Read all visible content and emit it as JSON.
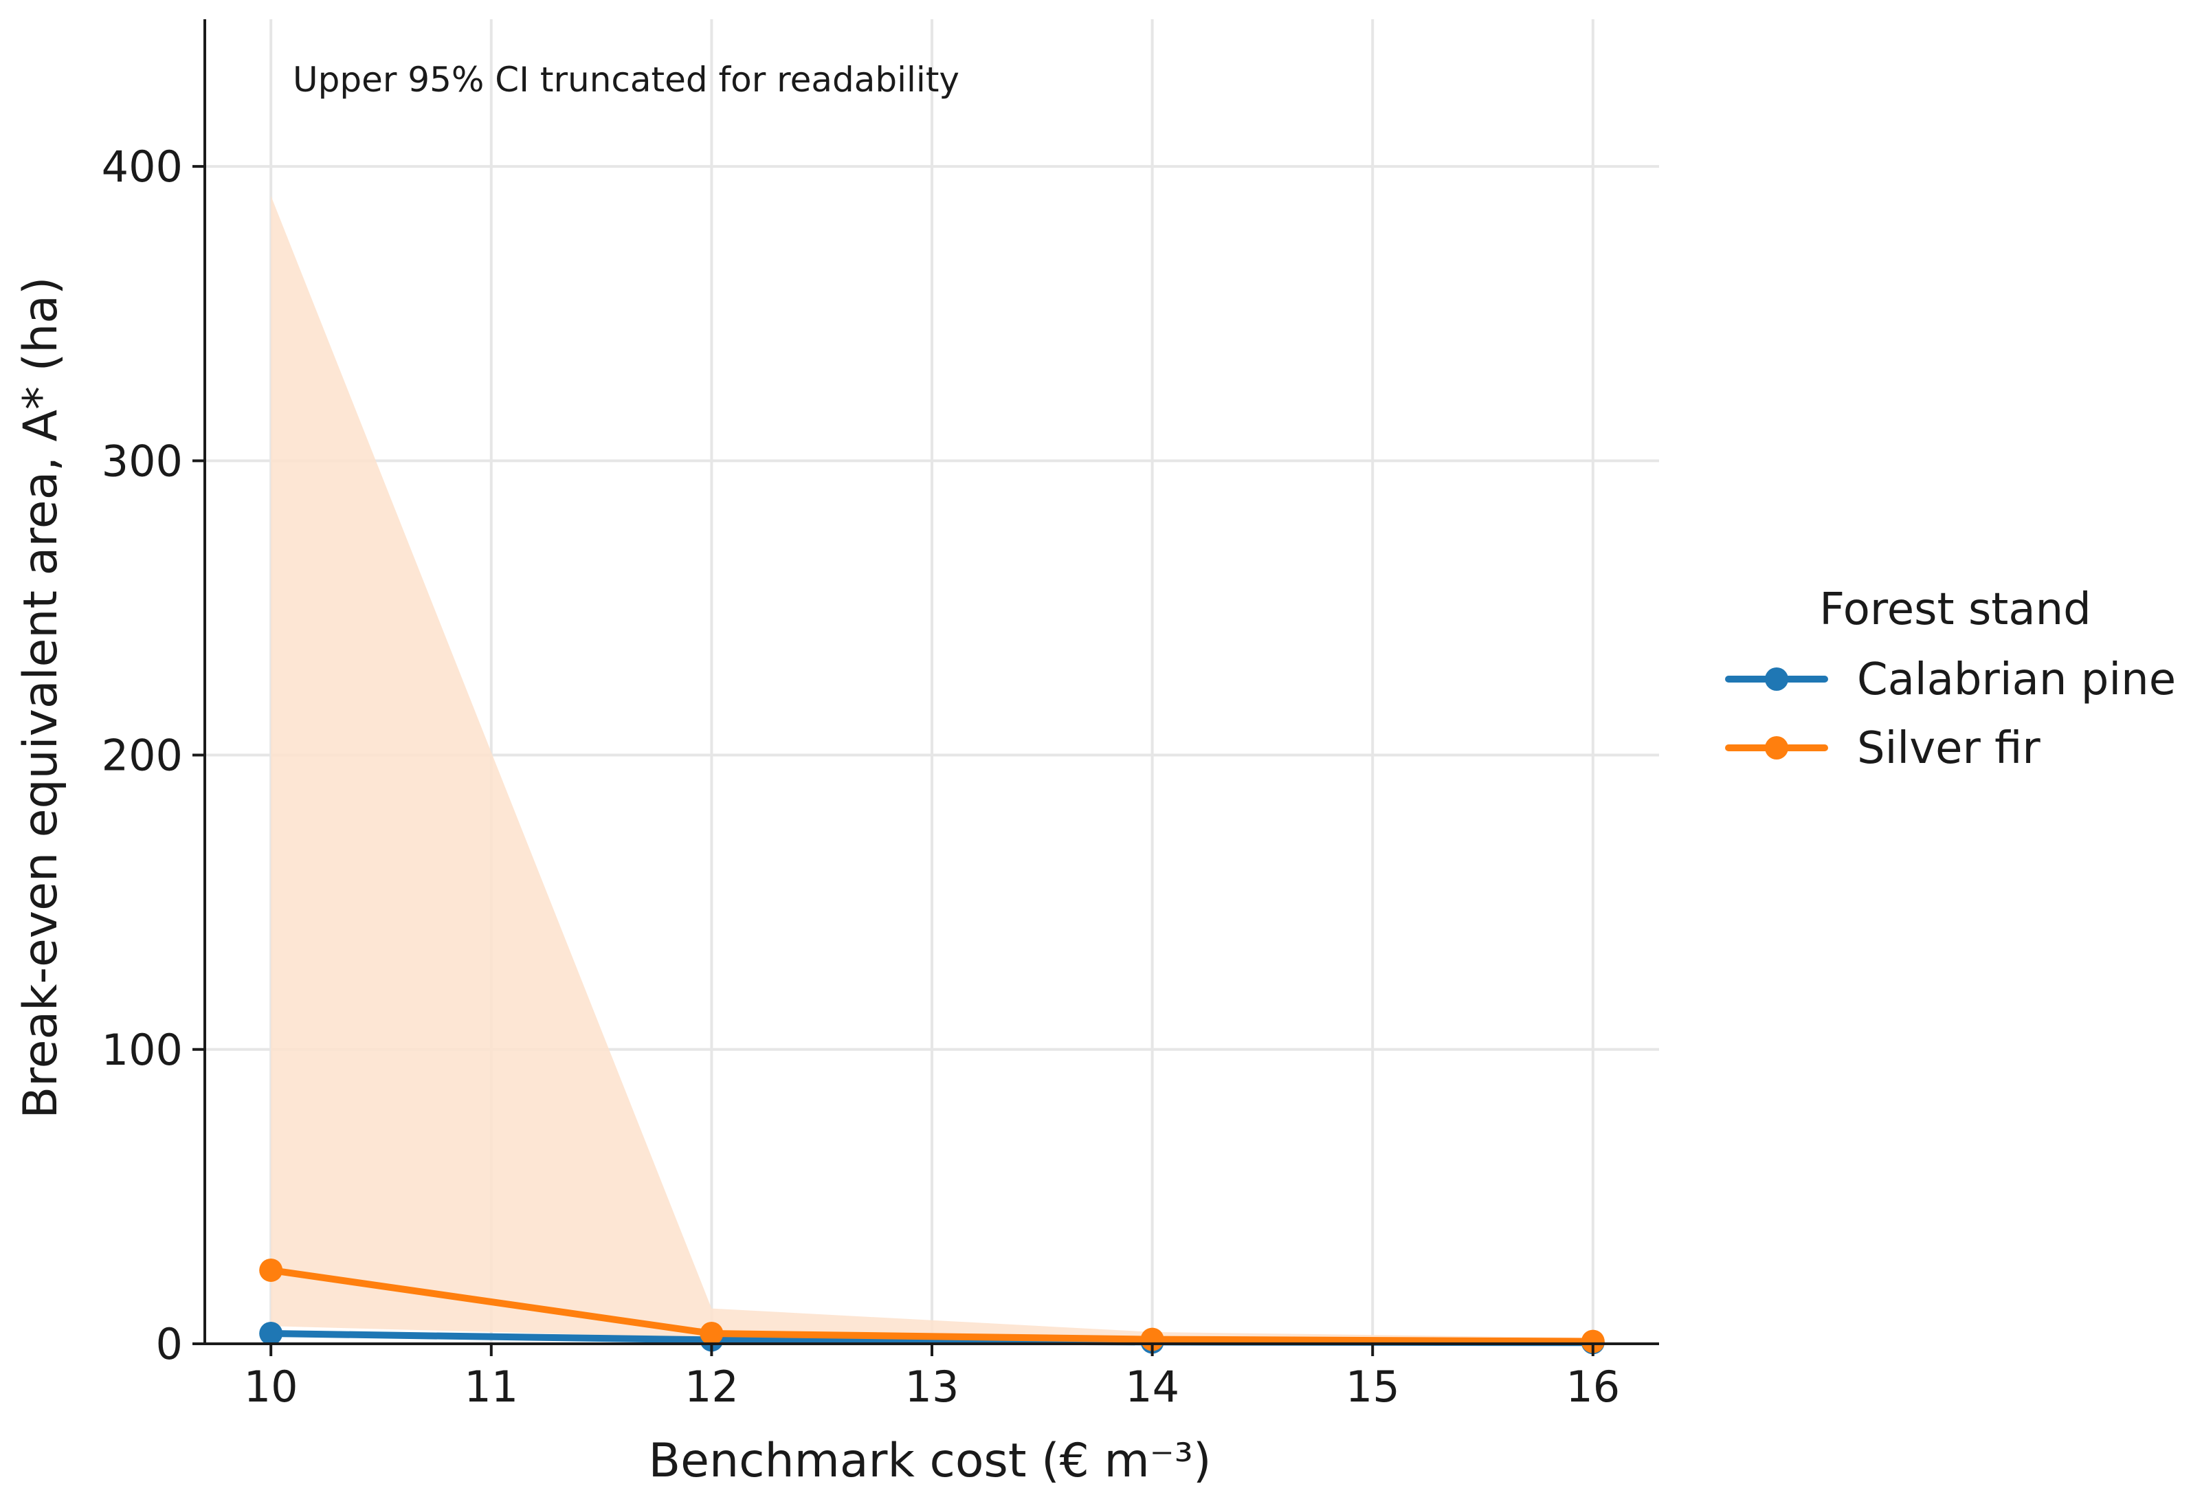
{
  "chart_data": {
    "type": "line",
    "title": "",
    "xlabel": "Benchmark cost (€ m⁻³)",
    "ylabel": "Break-even equivalent area, A* (ha)",
    "xlim": [
      9.7,
      16.3
    ],
    "ylim": [
      0,
      450
    ],
    "xticks": [
      10,
      11,
      12,
      13,
      14,
      15,
      16
    ],
    "yticks": [
      0,
      100,
      200,
      300,
      400
    ],
    "grid": true,
    "annotation": "Upper 95% CI truncated for readability",
    "legend": {
      "title": "Forest stand",
      "placement": "right-outside"
    },
    "series": [
      {
        "name": "Calabrian pine",
        "color": "#1f77b4",
        "x": [
          10,
          12,
          14,
          16
        ],
        "y": [
          3.5,
          1.3,
          0.6,
          0.4
        ]
      },
      {
        "name": "Silver fir",
        "color": "#ff7f0e",
        "x": [
          10,
          12,
          14,
          16
        ],
        "y": [
          25,
          3.5,
          1.5,
          0.8
        ],
        "ci_lower": [
          6,
          2,
          1,
          0.5
        ],
        "ci_upper": [
          390,
          12,
          4,
          2
        ],
        "ci_color": "#fde2cc"
      }
    ]
  }
}
